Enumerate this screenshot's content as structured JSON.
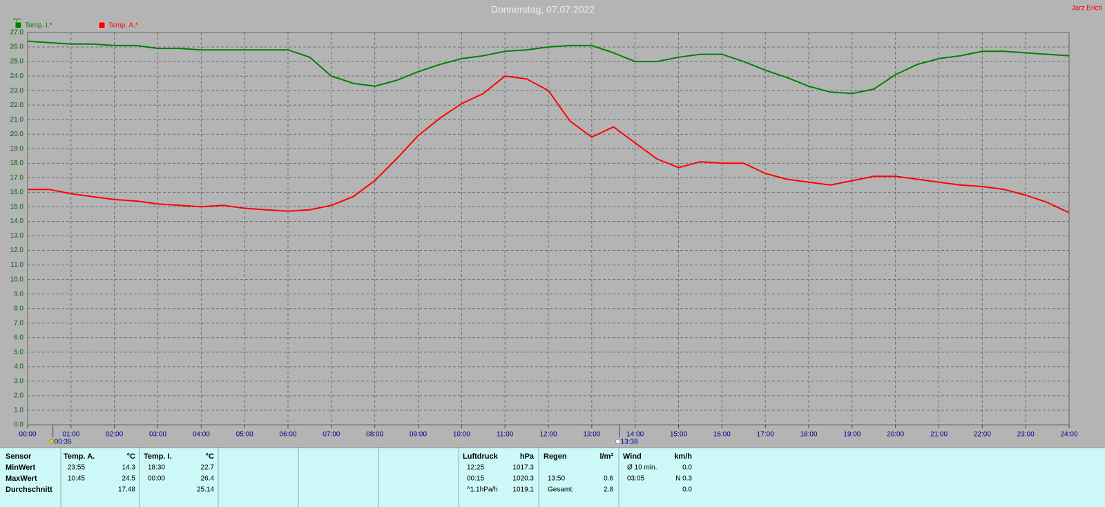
{
  "chart_data": {
    "type": "line",
    "title": "Donnerstag, 07.07.2022",
    "author": "Jarz Erich",
    "y_label": "°C",
    "x": [
      0,
      0.5,
      1,
      1.5,
      2,
      2.5,
      3,
      3.5,
      4,
      4.5,
      5,
      5.5,
      6,
      6.5,
      7,
      7.5,
      8,
      8.5,
      9,
      9.5,
      10,
      10.5,
      11,
      11.5,
      12,
      12.5,
      13,
      13.5,
      14,
      14.5,
      15,
      15.5,
      16,
      16.5,
      17,
      17.5,
      18,
      18.5,
      19,
      19.5,
      20,
      20.5,
      21,
      21.5,
      22,
      22.5,
      23,
      23.5,
      24
    ],
    "series": [
      {
        "name": "Temp. I.*",
        "color": "#008000",
        "values": [
          26.4,
          26.3,
          26.2,
          26.2,
          26.1,
          26.1,
          25.9,
          25.9,
          25.8,
          25.8,
          25.8,
          25.8,
          25.8,
          25.3,
          24.0,
          23.5,
          23.3,
          23.7,
          24.3,
          24.8,
          25.2,
          25.4,
          25.7,
          25.8,
          26.0,
          26.1,
          26.1,
          25.6,
          25.0,
          25.0,
          25.3,
          25.5,
          25.5,
          25.0,
          24.4,
          23.9,
          23.3,
          22.9,
          22.8,
          23.1,
          24.1,
          24.8,
          25.2,
          25.4,
          25.7,
          25.7,
          25.6,
          25.5,
          25.4
        ]
      },
      {
        "name": "Temp. A.*",
        "color": "#ff0000",
        "values": [
          16.2,
          16.2,
          15.9,
          15.7,
          15.5,
          15.4,
          15.2,
          15.1,
          15.0,
          15.1,
          14.9,
          14.8,
          14.7,
          14.8,
          15.1,
          15.7,
          16.8,
          18.3,
          19.9,
          21.1,
          22.1,
          22.8,
          24.0,
          23.8,
          23.0,
          20.9,
          19.8,
          20.5,
          19.4,
          18.3,
          17.7,
          18.1,
          18.0,
          18.0,
          17.3,
          16.9,
          16.7,
          16.5,
          16.8,
          17.1,
          17.1,
          16.9,
          16.7,
          16.5,
          16.4,
          16.2,
          15.8,
          15.3,
          14.6
        ]
      }
    ],
    "xlim": [
      0,
      24
    ],
    "xticks": [
      {
        "value": 0,
        "label": "00:00"
      },
      {
        "value": 1,
        "label": "01:00"
      },
      {
        "value": 2,
        "label": "02:00"
      },
      {
        "value": 3,
        "label": "03:00"
      },
      {
        "value": 4,
        "label": "04:00"
      },
      {
        "value": 5,
        "label": "05:00"
      },
      {
        "value": 6,
        "label": "06:00"
      },
      {
        "value": 7,
        "label": "07:00"
      },
      {
        "value": 8,
        "label": "08:00"
      },
      {
        "value": 9,
        "label": "09:00"
      },
      {
        "value": 10,
        "label": "10:00"
      },
      {
        "value": 11,
        "label": "11:00"
      },
      {
        "value": 12,
        "label": "12:00"
      },
      {
        "value": 13,
        "label": "13:00"
      },
      {
        "value": 14,
        "label": "14:00"
      },
      {
        "value": 15,
        "label": "15:00"
      },
      {
        "value": 16,
        "label": "16:00"
      },
      {
        "value": 17,
        "label": "17:00"
      },
      {
        "value": 18,
        "label": "18:00"
      },
      {
        "value": 19,
        "label": "19:00"
      },
      {
        "value": 20,
        "label": "20:00"
      },
      {
        "value": 21,
        "label": "21:00"
      },
      {
        "value": 22,
        "label": "22:00"
      },
      {
        "value": 23,
        "label": "23:00"
      },
      {
        "value": 24,
        "label": "24:00"
      }
    ],
    "ylim": [
      0,
      27
    ],
    "yticks": [
      {
        "value": 0,
        "label": "0.0"
      },
      {
        "value": 1,
        "label": "1.0"
      },
      {
        "value": 2,
        "label": "2.0"
      },
      {
        "value": 3,
        "label": "3.0"
      },
      {
        "value": 4,
        "label": "4.0"
      },
      {
        "value": 5,
        "label": "5.0"
      },
      {
        "value": 6,
        "label": "6.0"
      },
      {
        "value": 7,
        "label": "7.0"
      },
      {
        "value": 8,
        "label": "8.0"
      },
      {
        "value": 9,
        "label": "9.0"
      },
      {
        "value": 10,
        "label": "10.0"
      },
      {
        "value": 11,
        "label": "11.0"
      },
      {
        "value": 12,
        "label": "12.0"
      },
      {
        "value": 13,
        "label": "13.0"
      },
      {
        "value": 14,
        "label": "14.0"
      },
      {
        "value": 15,
        "label": "15.0"
      },
      {
        "value": 16,
        "label": "16.0"
      },
      {
        "value": 17,
        "label": "17.0"
      },
      {
        "value": 18,
        "label": "18.0"
      },
      {
        "value": 19,
        "label": "19.0"
      },
      {
        "value": 20,
        "label": "20.0"
      },
      {
        "value": 21,
        "label": "21.0"
      },
      {
        "value": 22,
        "label": "22.0"
      },
      {
        "value": 23,
        "label": "23.0"
      },
      {
        "value": 24,
        "label": "24.0"
      },
      {
        "value": 25,
        "label": "25.0"
      },
      {
        "value": 26,
        "label": "26.0"
      },
      {
        "value": 27,
        "label": "27.0"
      }
    ],
    "grid": true,
    "annotations": [
      {
        "label": "00:35",
        "x": 0.5833
      },
      {
        "label": "13:38",
        "x": 13.6333
      }
    ]
  },
  "stats": {
    "row_labels": [
      "Sensor",
      "MinWert",
      "MaxWert",
      "Durchschnitt"
    ],
    "groups": [
      {
        "name": "Temp. A.",
        "unit": "°C",
        "rows": [
          [
            "23:55",
            "14.3"
          ],
          [
            "10:45",
            "24.5"
          ],
          [
            null,
            "17.48"
          ]
        ]
      },
      {
        "name": "Temp. I.",
        "unit": "°C",
        "rows": [
          [
            "18:30",
            "22.7"
          ],
          [
            "00:00",
            "26.4"
          ],
          [
            null,
            "25.14"
          ]
        ]
      },
      {
        "name": "Luftdruck",
        "unit": "hPa",
        "rows": [
          [
            "12:25",
            "1017.3"
          ],
          [
            "00:15",
            "1020.3"
          ],
          [
            "^1.1hPa/h",
            "1019.1"
          ]
        ]
      },
      {
        "name": "Regen",
        "unit": "l/m²",
        "rows": [
          [
            null,
            null
          ],
          [
            "13:50",
            "0.6"
          ],
          [
            "Gesamt:",
            "2.8"
          ]
        ]
      },
      {
        "name": "Wind",
        "unit": "km/h",
        "rows": [
          [
            "Ø 10 min.",
            "0.0"
          ],
          [
            "03:05",
            "N 0.3"
          ],
          [
            null,
            "0.0"
          ]
        ]
      }
    ]
  }
}
